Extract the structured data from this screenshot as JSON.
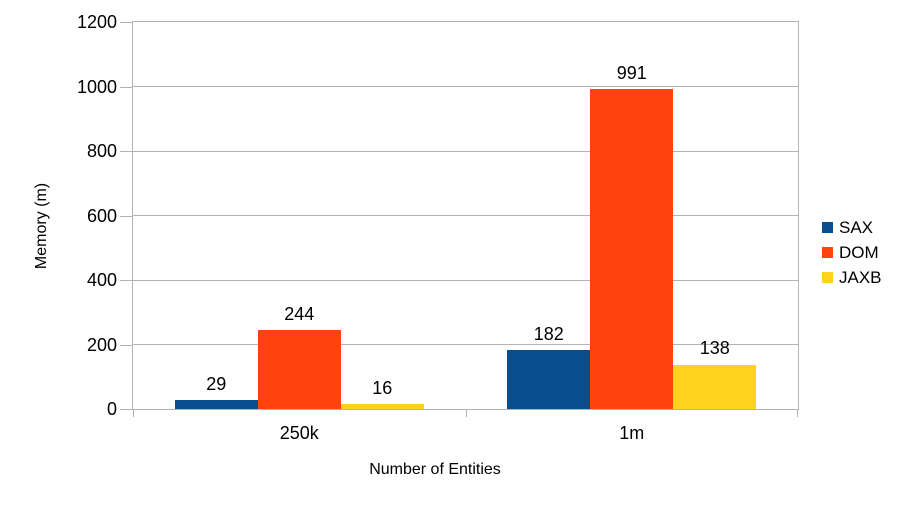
{
  "chart_data": {
    "type": "bar",
    "title": "",
    "xlabel": "Number of Entities",
    "ylabel": "Memory (m)",
    "categories": [
      "250k",
      "1m"
    ],
    "series": [
      {
        "name": "SAX",
        "color": "#084d8c",
        "values": [
          29,
          182
        ]
      },
      {
        "name": "DOM",
        "color": "#ff420e",
        "values": [
          244,
          991
        ]
      },
      {
        "name": "JAXB",
        "color": "#ffd320",
        "values": [
          16,
          138
        ]
      }
    ],
    "ylim": [
      0,
      1200
    ],
    "yticks": [
      0,
      200,
      400,
      600,
      800,
      1000,
      1200
    ],
    "grid": "horizontal-only",
    "gridline_color": "#b3b3b3",
    "text_color": "#000000",
    "background_color": "#ffffff",
    "legend_position": "right",
    "value_labels_visible": true
  }
}
